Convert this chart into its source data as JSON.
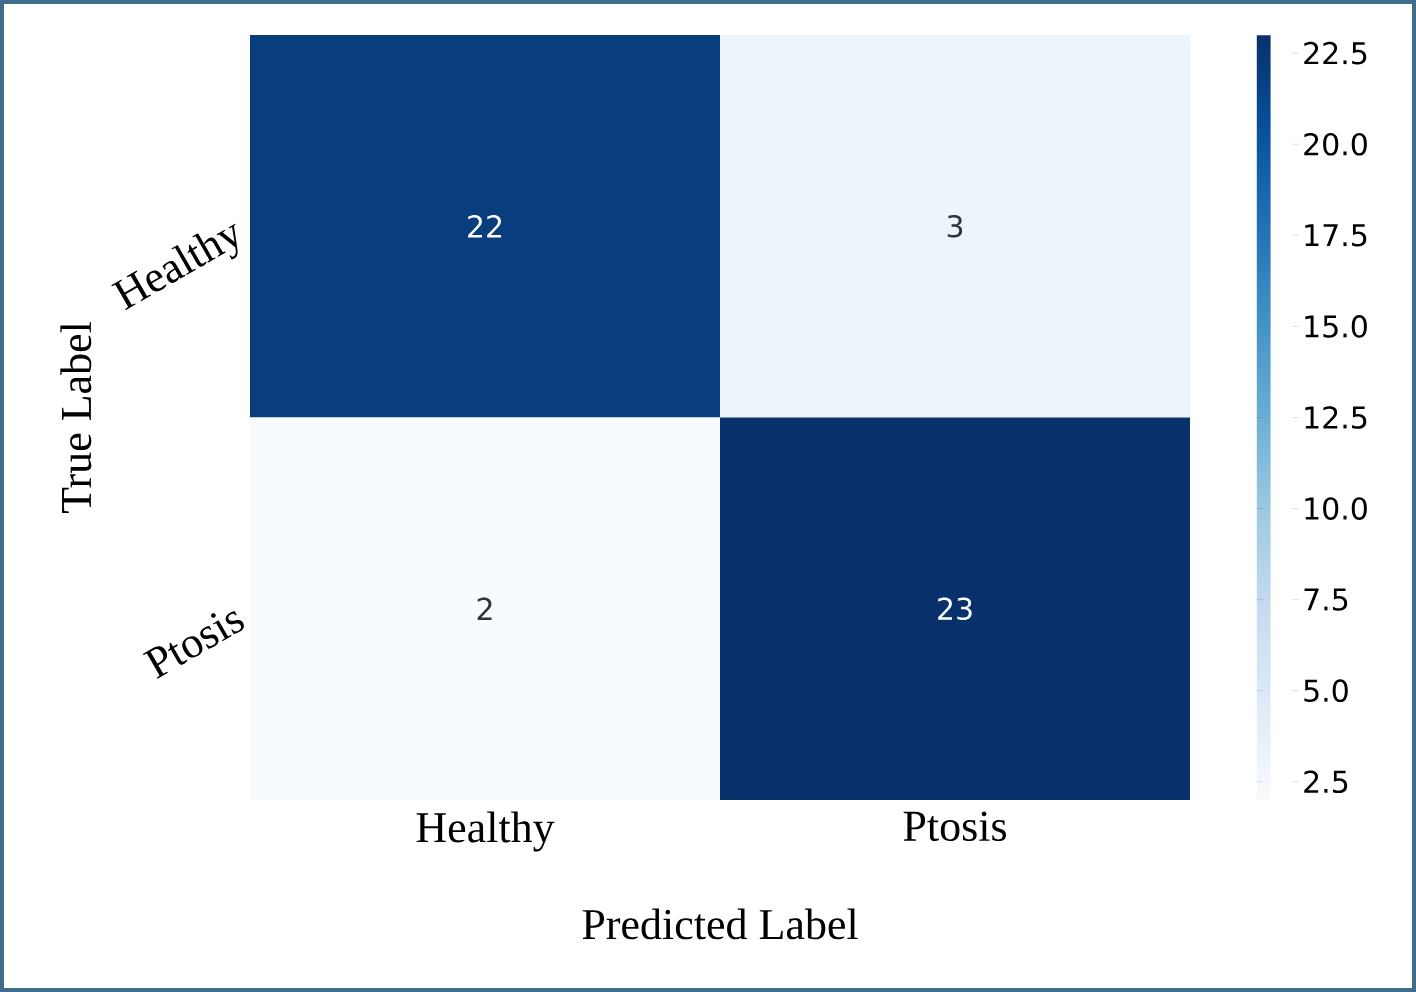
{
  "chart_data": {
    "type": "heatmap",
    "xlabel": "Predicted Label",
    "ylabel": "True Label",
    "categories": [
      "Healthy",
      "Ptosis"
    ],
    "y_categories": [
      "Healthy",
      "Ptosis"
    ],
    "cells": [
      [
        22,
        3
      ],
      [
        2,
        23
      ]
    ],
    "data_labels": true,
    "clim": [
      2,
      23
    ],
    "cticks": [
      2.5,
      {
        "value": 5,
        "label": "5.0"
      },
      7.5,
      {
        "value": 10,
        "label": "10.0"
      },
      12.5,
      {
        "value": 15,
        "label": "15.0"
      },
      17.5,
      {
        "value": 20,
        "label": "20.0"
      },
      22.5
    ]
  }
}
